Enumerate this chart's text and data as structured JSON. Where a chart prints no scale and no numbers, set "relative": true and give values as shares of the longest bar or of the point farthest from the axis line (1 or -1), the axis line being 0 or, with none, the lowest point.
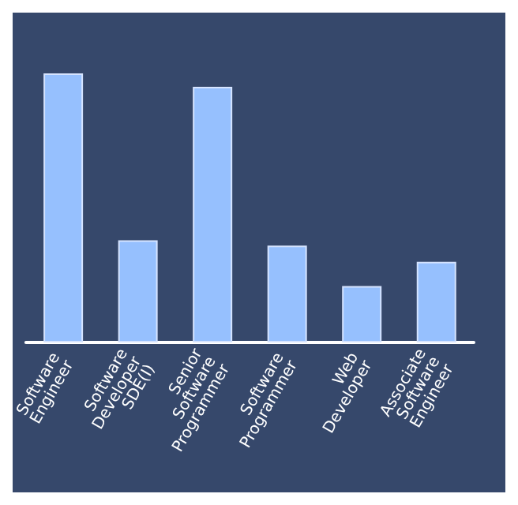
{
  "chart_data": {
    "type": "bar",
    "relative": true,
    "categories": [
      "Software Engineer",
      "Software Developer SDE(I)",
      "Senior Software Programmer",
      "Software Programmer",
      "Web Developer",
      "Associate Software Engineer"
    ],
    "values": [
      1,
      0.38,
      0.95,
      0.36,
      0.21,
      0.3
    ],
    "color": "#96c0fe"
  }
}
